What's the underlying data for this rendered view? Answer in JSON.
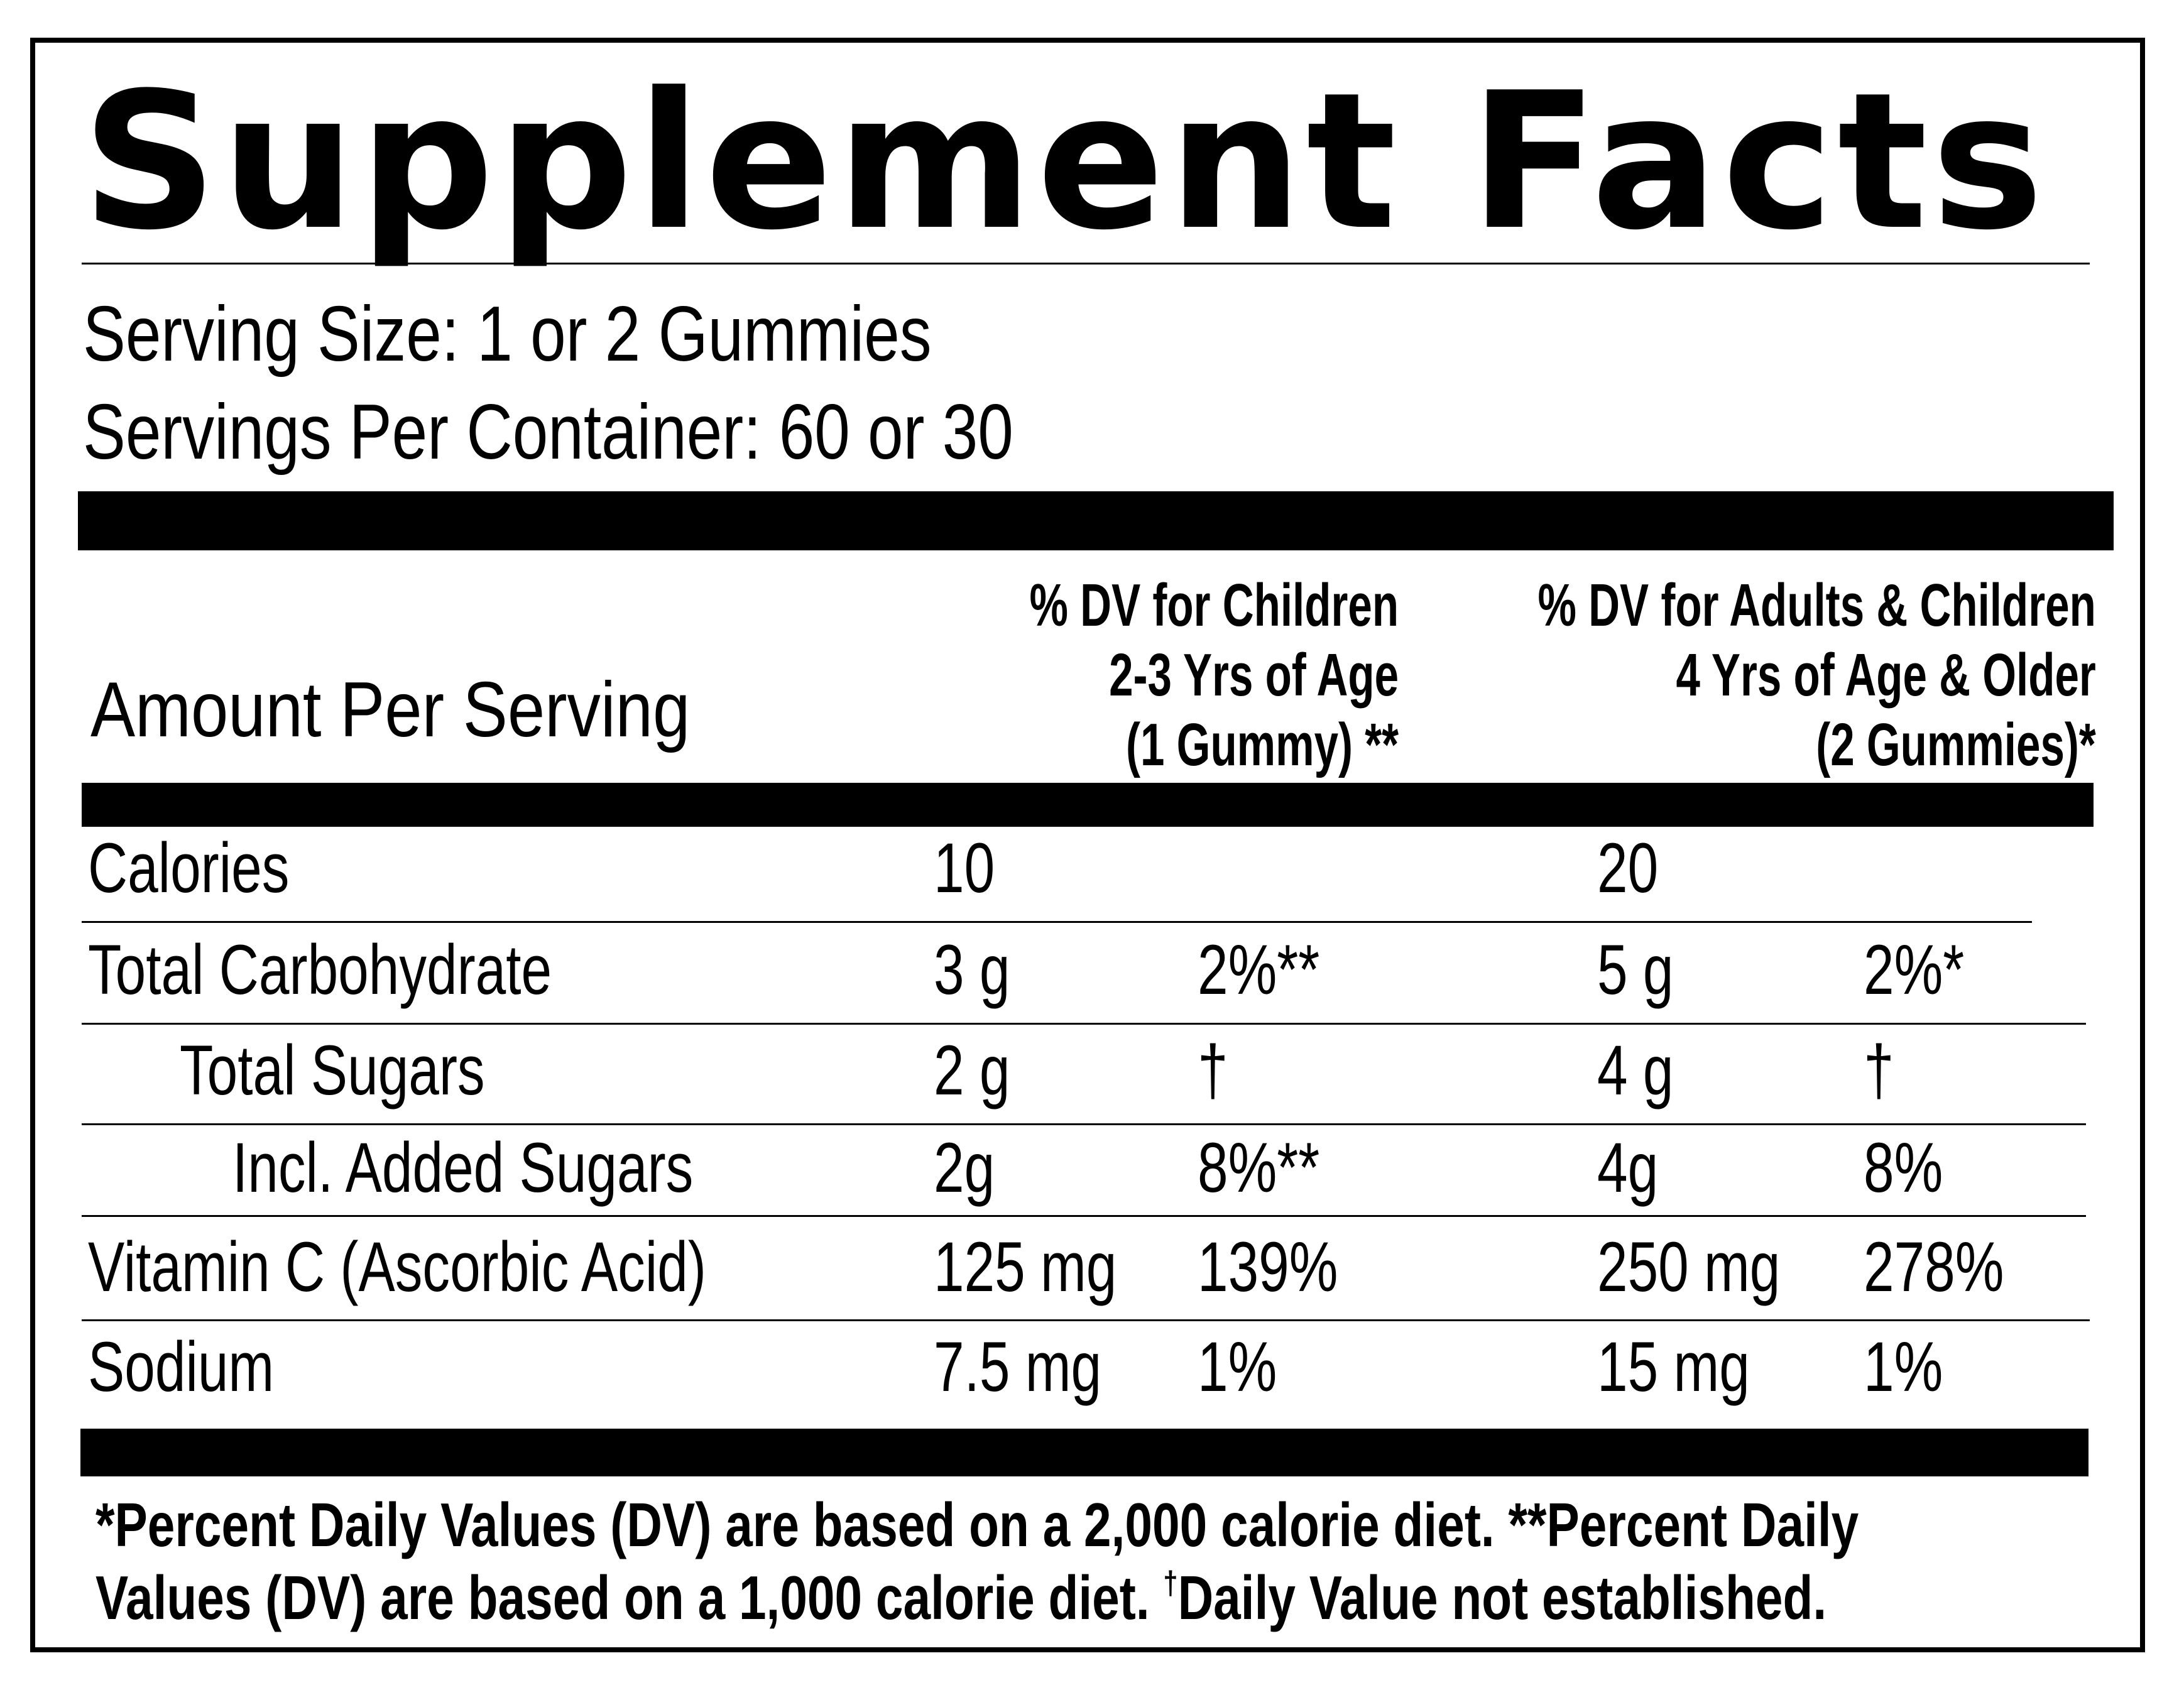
{
  "title": "Supplement Facts",
  "serving_size": "Serving Size: 1 or 2 Gummies",
  "servings_per_container": "Servings Per Container: 60 or 30",
  "amount_header": "Amount Per Serving",
  "columns": {
    "children": {
      "line1": "% DV for Children",
      "line2": "2-3 Yrs of Age",
      "line3": "(1 Gummy) **"
    },
    "adults": {
      "line1": "% DV for Adults & Children",
      "line2": "4 Yrs of Age & Older",
      "line3": "(2 Gummies)*"
    }
  },
  "rows": [
    {
      "name": "Calories",
      "child_amount": "10",
      "child_dv": "",
      "adult_amount": "20",
      "adult_dv": ""
    },
    {
      "name": "Total Carbohydrate",
      "child_amount": "3 g",
      "child_dv": "2%**",
      "adult_amount": "5 g",
      "adult_dv": "2%*"
    },
    {
      "name": "Total Sugars",
      "child_amount": "2 g",
      "child_dv": "†",
      "adult_amount": "4 g",
      "adult_dv": "†"
    },
    {
      "name": "Incl. Added Sugars",
      "child_amount": "2g",
      "child_dv": "8%**",
      "adult_amount": "4g",
      "adult_dv": "8%"
    },
    {
      "name": "Vitamin C (Ascorbic Acid)",
      "child_amount": "125 mg",
      "child_dv": "139%",
      "adult_amount": "250 mg",
      "adult_dv": "278%"
    },
    {
      "name": "Sodium",
      "child_amount": "7.5 mg",
      "child_dv": "1%",
      "adult_amount": "15 mg",
      "adult_dv": "1%"
    }
  ],
  "footnote": {
    "line1": "*Percent Daily Values (DV) are based on a 2,000 calorie diet. **Percent Daily",
    "line2_start": "Values (DV) are based on a 1,000 calorie diet.",
    "dagger": "†",
    "line2_end": "Daily Value not established."
  }
}
